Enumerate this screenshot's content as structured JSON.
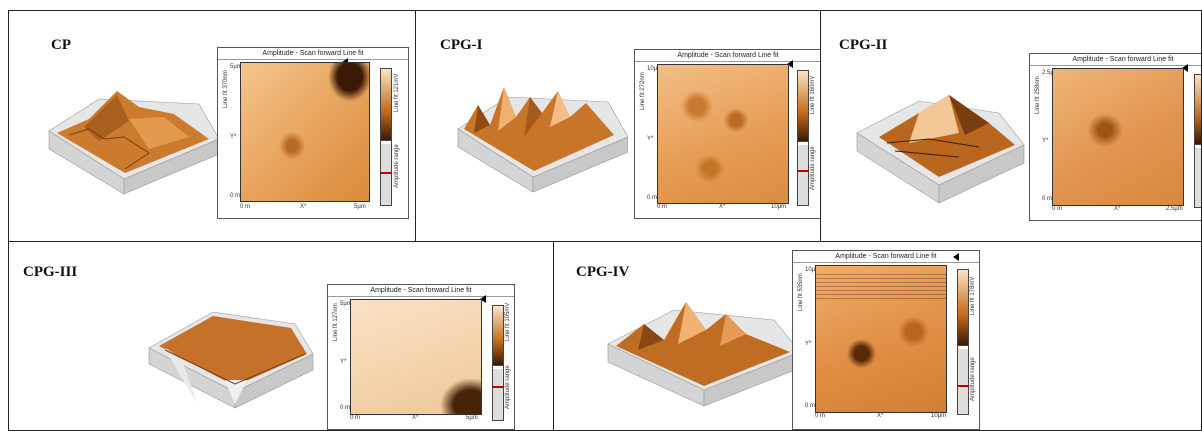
{
  "panels": [
    {
      "label": "CP",
      "amp_title": "Amplitude - Scan forward   Line fit",
      "line_left": "Line fit 370nm",
      "line_right": "Line fit 121mV",
      "y_top": "5µm",
      "y_bottom": "0 m",
      "x_left": "0 m",
      "x_mid": "X*",
      "x_right": "5µm",
      "y_axis": "Y*",
      "range": "Amplitude range"
    },
    {
      "label": "CPG-I",
      "amp_title": "Amplitude - Scan forward   Line fit",
      "line_left": "Line fit 272nm",
      "line_right": "Line fit 160mV",
      "y_top": "10µm",
      "y_bottom": "0 m",
      "x_left": "0 m",
      "x_mid": "X*",
      "x_right": "10µm",
      "y_axis": "Y*",
      "range": "Amplitude range"
    },
    {
      "label": "CPG-II",
      "amp_title": "Amplitude - Scan forward   Line fit",
      "line_left": "Line fit 258nm",
      "line_right": "",
      "y_top": "2.5µm",
      "y_bottom": "0 m",
      "x_left": "0 m",
      "x_mid": "X*",
      "x_right": "2.5µm",
      "y_axis": "Y*",
      "range": ""
    },
    {
      "label": "CPG-III",
      "amp_title": "Amplitude - Scan forward   Line fit",
      "line_left": "Line fit 127nm",
      "line_right": "Line fit 105mV",
      "y_top": "5µm",
      "y_bottom": "0 m",
      "x_left": "0 m",
      "x_mid": "X*",
      "x_right": "5µm",
      "y_axis": "Y*",
      "range": "Amplitude range"
    },
    {
      "label": "CPG-IV",
      "amp_title": "Amplitude - Scan forward   Line fit",
      "line_left": "Line fit 535nm",
      "line_right": "Line fit 178mV",
      "y_top": "10µm",
      "y_bottom": "0 m",
      "x_left": "0 m",
      "x_mid": "X*",
      "x_right": "10µm",
      "y_axis": "Y*",
      "range": "Amplitude range"
    }
  ],
  "colors": {
    "copper_light": "#f2c08a",
    "copper": "#d98a3a",
    "copper_dark": "#8a4a12",
    "pale": "#f6dcbd"
  }
}
